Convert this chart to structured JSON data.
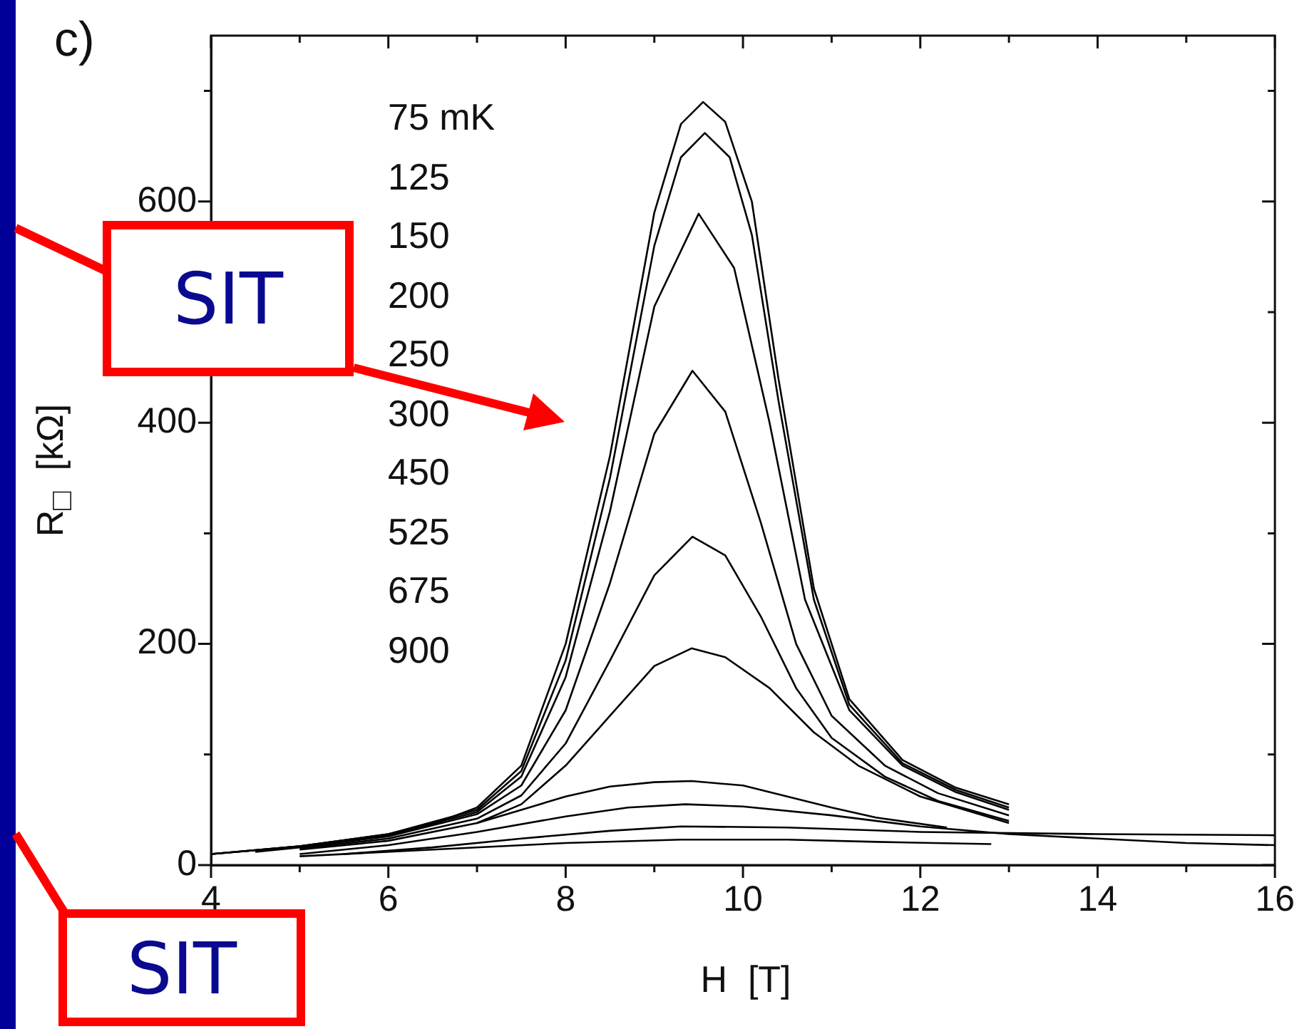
{
  "chart_data": {
    "type": "line",
    "xlabel": "H  [T]",
    "ylabel": "R$_{□}$  [kΩ]",
    "annotations": [
      "c)",
      "SIT",
      "SIT",
      "75 mK",
      "125",
      "150",
      "200",
      "250",
      "300",
      "450",
      "525",
      "675",
      "900"
    ],
    "xlim": [
      4,
      16
    ],
    "xticks": [
      4,
      {
        "value": 5,
        "label": null
      },
      6,
      {
        "value": 7,
        "label": null
      },
      8,
      {
        "value": 9,
        "label": null
      },
      10,
      {
        "value": 11,
        "label": null
      },
      12,
      {
        "value": 13,
        "label": null
      },
      14,
      {
        "value": 15,
        "label": null
      },
      16
    ],
    "ylim": [
      0,
      750
    ],
    "yticks": [
      0,
      {
        "value": 100,
        "label": null
      },
      200,
      {
        "value": 300,
        "label": null
      },
      400,
      {
        "value": 500,
        "label": null
      },
      600,
      {
        "value": 700,
        "label": null
      }
    ],
    "marker": "none",
    "line_style": "solid",
    "series": [
      {
        "color": "#000000",
        "x": [
          4,
          5,
          6,
          6.5,
          7,
          7.5,
          8,
          8.5,
          9,
          9.3,
          9.55,
          9.8,
          10.1,
          10.4,
          10.8,
          11.2,
          11.8,
          12.4,
          13
        ],
        "values": [
          10,
          17,
          28,
          37,
          52,
          90,
          200,
          370,
          590,
          670,
          690,
          672,
          600,
          440,
          250,
          150,
          95,
          70,
          55
        ]
      },
      {
        "color": "#000000",
        "x": [
          4,
          5,
          6,
          7,
          7.5,
          8,
          8.5,
          9,
          9.3,
          9.57,
          9.85,
          10.1,
          10.4,
          10.8,
          11.2,
          11.8,
          12.4,
          13
        ],
        "values": [
          10,
          17,
          28,
          50,
          85,
          185,
          350,
          560,
          640,
          662,
          640,
          570,
          420,
          240,
          145,
          92,
          68,
          52
        ]
      },
      {
        "color": "#000000",
        "x": [
          4,
          5,
          6,
          7,
          7.5,
          8,
          8.5,
          9,
          9.5,
          9.9,
          10.3,
          10.7,
          11.2,
          11.8,
          12.4,
          13
        ],
        "values": [
          10,
          17,
          27,
          48,
          80,
          170,
          320,
          505,
          589,
          540,
          400,
          240,
          140,
          90,
          66,
          50
        ]
      },
      {
        "color": "#000000",
        "x": [
          4.5,
          5,
          6,
          7,
          7.5,
          8,
          8.5,
          9,
          9.43,
          9.8,
          10.2,
          10.6,
          11,
          11.6,
          12.2,
          13
        ],
        "values": [
          12,
          16,
          26,
          46,
          72,
          140,
          255,
          390,
          447,
          410,
          310,
          200,
          135,
          90,
          65,
          45
        ]
      },
      {
        "color": "#000000",
        "x": [
          5,
          6,
          7,
          7.5,
          8,
          8.5,
          9,
          9.43,
          9.8,
          10.2,
          10.6,
          11,
          11.6,
          12.2,
          13
        ],
        "values": [
          15,
          24,
          42,
          63,
          110,
          185,
          262,
          297,
          280,
          225,
          160,
          115,
          80,
          58,
          40
        ]
      },
      {
        "color": "#000000",
        "x": [
          5,
          6,
          7,
          7.5,
          8,
          8.5,
          9,
          9.42,
          9.8,
          10.3,
          10.8,
          11.3,
          12,
          13
        ],
        "values": [
          14,
          22,
          38,
          55,
          90,
          135,
          180,
          196,
          188,
          160,
          120,
          90,
          62,
          38
        ]
      },
      {
        "color": "#000000",
        "x": [
          7,
          7.5,
          8,
          8.5,
          9,
          9.42,
          10,
          10.5,
          11,
          11.5,
          12.3
        ],
        "values": [
          38,
          50,
          62,
          71,
          75,
          76,
          72,
          62,
          52,
          43,
          34
        ]
      },
      {
        "color": "#000000",
        "x": [
          5,
          6,
          7,
          8,
          8.7,
          9.35,
          10,
          11,
          12,
          13,
          14,
          15,
          16
        ],
        "values": [
          10,
          18,
          30,
          44,
          52,
          55,
          53,
          45,
          35,
          28,
          24,
          20,
          18
        ]
      },
      {
        "color": "#000000",
        "x": [
          5.5,
          6.5,
          7.5,
          8.5,
          9.3,
          10.5,
          12,
          14,
          16
        ],
        "values": [
          10,
          16,
          24,
          31,
          35,
          34,
          30,
          28,
          27
        ]
      },
      {
        "color": "#000000",
        "x": [
          5,
          6.5,
          8,
          9.3,
          10.5,
          11.5,
          12.8
        ],
        "values": [
          8,
          14,
          20,
          23,
          23,
          21,
          19
        ]
      }
    ]
  }
}
